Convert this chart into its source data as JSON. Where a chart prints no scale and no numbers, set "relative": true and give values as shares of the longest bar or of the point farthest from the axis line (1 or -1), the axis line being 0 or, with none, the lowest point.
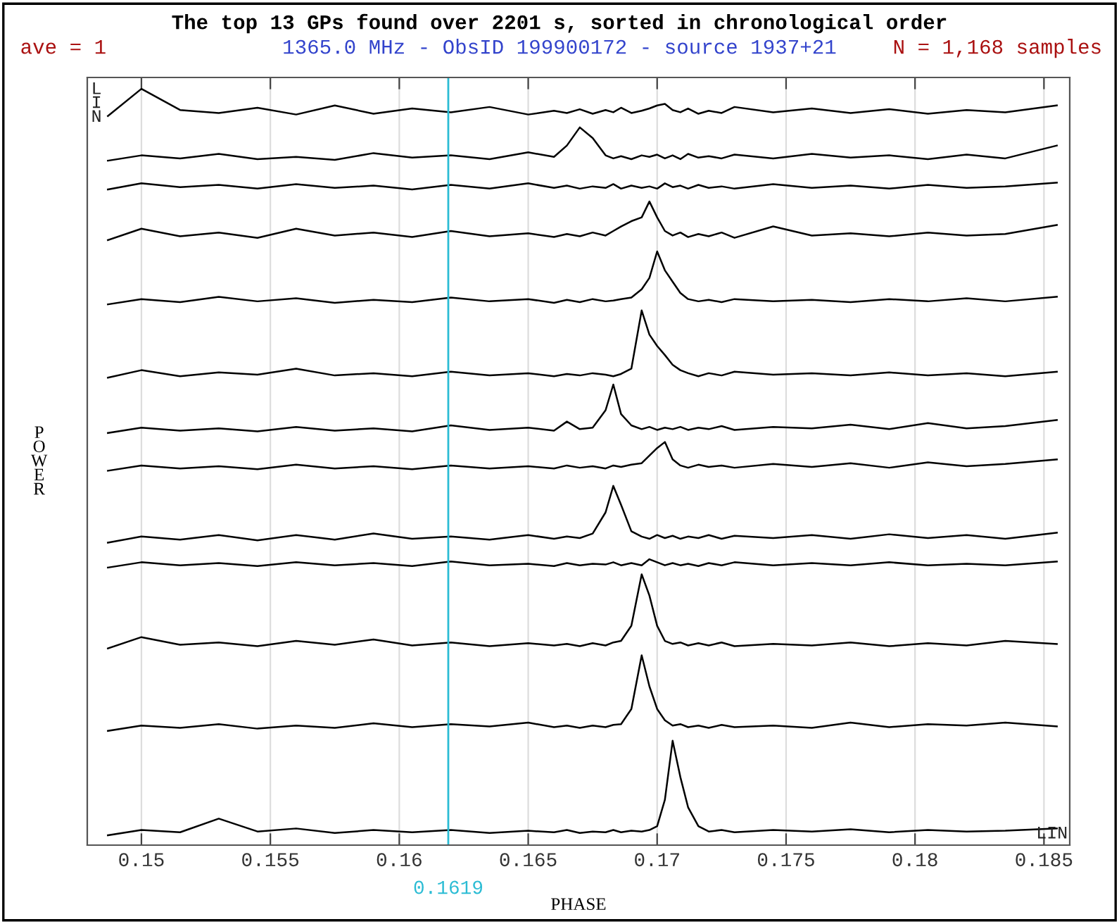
{
  "chart_data": {
    "type": "line",
    "relative": true,
    "title": "The top 13 GPs found over 2201 s, sorted in chronological order",
    "subtitle": "1365.0 MHz - ObsID 199900172 - source 1937+21",
    "xlabel": "PHASE",
    "ylabel": "POWER",
    "annotations": [
      "ave = 1",
      "N = 1,168 samples",
      "LIN",
      "LIN"
    ],
    "xlim": [
      0.1479,
      0.186
    ],
    "xticks": [
      0.15,
      0.155,
      0.16,
      0.165,
      0.17,
      0.175,
      0.18,
      0.185
    ],
    "grid": "x",
    "marker": "none",
    "line_style": "solid",
    "ref_lines": [
      {
        "axis": "x",
        "value": 0.1619,
        "label": "0.1619",
        "color": "#2bbcd4"
      }
    ],
    "x": [
      0.1487,
      0.15,
      0.1515,
      0.153,
      0.1545,
      0.156,
      0.1575,
      0.159,
      0.1605,
      0.162,
      0.1635,
      0.165,
      0.166,
      0.1665,
      0.167,
      0.1675,
      0.168,
      0.1683,
      0.1686,
      0.169,
      0.1694,
      0.1697,
      0.17,
      0.1703,
      0.1706,
      0.1709,
      0.1712,
      0.1716,
      0.172,
      0.1725,
      0.173,
      0.1745,
      0.176,
      0.1775,
      0.179,
      0.1805,
      0.182,
      0.1835,
      0.1855
    ],
    "series": [
      {
        "color": "#000000",
        "values": [
          0.964,
          1.0,
          0.972,
          0.968,
          0.975,
          0.966,
          0.978,
          0.967,
          0.974,
          0.969,
          0.976,
          0.966,
          0.971,
          0.968,
          0.973,
          0.967,
          0.972,
          0.969,
          0.975,
          0.968,
          0.971,
          0.974,
          0.978,
          0.98,
          0.972,
          0.969,
          0.974,
          0.967,
          0.971,
          0.968,
          0.976,
          0.969,
          0.974,
          0.968,
          0.973,
          0.967,
          0.972,
          0.969,
          0.978
        ]
      },
      {
        "color": "#000000",
        "values": [
          0.905,
          0.912,
          0.908,
          0.914,
          0.907,
          0.91,
          0.906,
          0.915,
          0.909,
          0.912,
          0.907,
          0.916,
          0.91,
          0.925,
          0.949,
          0.935,
          0.912,
          0.908,
          0.911,
          0.907,
          0.912,
          0.91,
          0.913,
          0.908,
          0.912,
          0.907,
          0.914,
          0.909,
          0.911,
          0.908,
          0.913,
          0.908,
          0.914,
          0.909,
          0.912,
          0.907,
          0.913,
          0.908,
          0.925
        ]
      },
      {
        "color": "#000000",
        "values": [
          0.867,
          0.875,
          0.87,
          0.873,
          0.868,
          0.874,
          0.869,
          0.872,
          0.867,
          0.873,
          0.868,
          0.875,
          0.869,
          0.872,
          0.868,
          0.871,
          0.869,
          0.874,
          0.868,
          0.872,
          0.869,
          0.871,
          0.868,
          0.875,
          0.87,
          0.872,
          0.868,
          0.873,
          0.869,
          0.871,
          0.868,
          0.874,
          0.869,
          0.872,
          0.868,
          0.873,
          0.869,
          0.871,
          0.876
        ]
      },
      {
        "color": "#000000",
        "values": [
          0.8,
          0.815,
          0.805,
          0.81,
          0.803,
          0.815,
          0.806,
          0.81,
          0.804,
          0.812,
          0.805,
          0.809,
          0.804,
          0.808,
          0.805,
          0.81,
          0.806,
          0.812,
          0.818,
          0.825,
          0.83,
          0.851,
          0.83,
          0.812,
          0.806,
          0.81,
          0.804,
          0.808,
          0.805,
          0.81,
          0.803,
          0.818,
          0.806,
          0.809,
          0.805,
          0.81,
          0.806,
          0.808,
          0.82
        ]
      },
      {
        "color": "#000000",
        "values": [
          0.715,
          0.722,
          0.718,
          0.725,
          0.719,
          0.723,
          0.717,
          0.721,
          0.718,
          0.724,
          0.719,
          0.722,
          0.717,
          0.721,
          0.718,
          0.722,
          0.719,
          0.72,
          0.722,
          0.724,
          0.735,
          0.75,
          0.785,
          0.76,
          0.745,
          0.73,
          0.722,
          0.719,
          0.721,
          0.718,
          0.722,
          0.719,
          0.721,
          0.718,
          0.722,
          0.719,
          0.723,
          0.719,
          0.725
        ]
      },
      {
        "color": "#000000",
        "values": [
          0.618,
          0.628,
          0.62,
          0.625,
          0.622,
          0.63,
          0.621,
          0.624,
          0.62,
          0.626,
          0.621,
          0.624,
          0.62,
          0.623,
          0.621,
          0.624,
          0.622,
          0.62,
          0.623,
          0.63,
          0.707,
          0.675,
          0.66,
          0.648,
          0.635,
          0.628,
          0.624,
          0.62,
          0.624,
          0.621,
          0.626,
          0.622,
          0.624,
          0.621,
          0.625,
          0.621,
          0.624,
          0.62,
          0.626
        ]
      },
      {
        "color": "#000000",
        "values": [
          0.545,
          0.552,
          0.548,
          0.551,
          0.547,
          0.553,
          0.548,
          0.551,
          0.547,
          0.555,
          0.549,
          0.552,
          0.548,
          0.56,
          0.55,
          0.552,
          0.575,
          0.609,
          0.57,
          0.555,
          0.55,
          0.553,
          0.549,
          0.552,
          0.55,
          0.553,
          0.549,
          0.552,
          0.55,
          0.554,
          0.549,
          0.553,
          0.551,
          0.556,
          0.55,
          0.558,
          0.551,
          0.554,
          0.562
        ]
      },
      {
        "color": "#000000",
        "values": [
          0.495,
          0.502,
          0.498,
          0.501,
          0.497,
          0.503,
          0.498,
          0.501,
          0.497,
          0.502,
          0.498,
          0.501,
          0.498,
          0.502,
          0.499,
          0.501,
          0.498,
          0.502,
          0.5,
          0.503,
          0.505,
          0.515,
          0.525,
          0.533,
          0.51,
          0.502,
          0.499,
          0.503,
          0.5,
          0.502,
          0.499,
          0.504,
          0.5,
          0.505,
          0.499,
          0.506,
          0.501,
          0.504,
          0.51
        ]
      },
      {
        "color": "#000000",
        "values": [
          0.4,
          0.408,
          0.404,
          0.41,
          0.403,
          0.41,
          0.404,
          0.412,
          0.405,
          0.408,
          0.404,
          0.41,
          0.405,
          0.408,
          0.406,
          0.412,
          0.44,
          0.475,
          0.45,
          0.415,
          0.408,
          0.405,
          0.41,
          0.406,
          0.409,
          0.405,
          0.408,
          0.406,
          0.41,
          0.405,
          0.409,
          0.406,
          0.41,
          0.405,
          0.411,
          0.406,
          0.41,
          0.405,
          0.413
        ]
      },
      {
        "color": "#000000",
        "values": [
          0.367,
          0.374,
          0.37,
          0.373,
          0.369,
          0.374,
          0.37,
          0.373,
          0.369,
          0.375,
          0.37,
          0.372,
          0.369,
          0.373,
          0.37,
          0.372,
          0.371,
          0.374,
          0.37,
          0.373,
          0.37,
          0.378,
          0.374,
          0.37,
          0.373,
          0.37,
          0.372,
          0.369,
          0.373,
          0.37,
          0.374,
          0.37,
          0.373,
          0.37,
          0.374,
          0.37,
          0.372,
          0.37,
          0.375
        ]
      },
      {
        "color": "#000000",
        "values": [
          0.26,
          0.275,
          0.265,
          0.268,
          0.263,
          0.27,
          0.265,
          0.272,
          0.264,
          0.268,
          0.263,
          0.267,
          0.264,
          0.266,
          0.263,
          0.267,
          0.264,
          0.268,
          0.27,
          0.29,
          0.358,
          0.33,
          0.29,
          0.27,
          0.266,
          0.268,
          0.264,
          0.267,
          0.264,
          0.268,
          0.263,
          0.266,
          0.264,
          0.268,
          0.263,
          0.267,
          0.264,
          0.27,
          0.266
        ]
      },
      {
        "color": "#000000",
        "values": [
          0.151,
          0.158,
          0.155,
          0.16,
          0.154,
          0.158,
          0.155,
          0.161,
          0.156,
          0.16,
          0.157,
          0.162,
          0.156,
          0.158,
          0.155,
          0.158,
          0.156,
          0.159,
          0.16,
          0.18,
          0.251,
          0.21,
          0.18,
          0.165,
          0.158,
          0.16,
          0.156,
          0.158,
          0.155,
          0.159,
          0.156,
          0.158,
          0.155,
          0.162,
          0.156,
          0.16,
          0.158,
          0.162,
          0.157
        ]
      },
      {
        "color": "#000000",
        "values": [
          0.013,
          0.02,
          0.017,
          0.035,
          0.018,
          0.022,
          0.016,
          0.02,
          0.017,
          0.02,
          0.016,
          0.019,
          0.017,
          0.02,
          0.016,
          0.018,
          0.017,
          0.02,
          0.017,
          0.019,
          0.018,
          0.02,
          0.025,
          0.06,
          0.138,
          0.09,
          0.05,
          0.025,
          0.018,
          0.02,
          0.017,
          0.02,
          0.018,
          0.021,
          0.017,
          0.02,
          0.018,
          0.019,
          0.022
        ]
      }
    ]
  }
}
